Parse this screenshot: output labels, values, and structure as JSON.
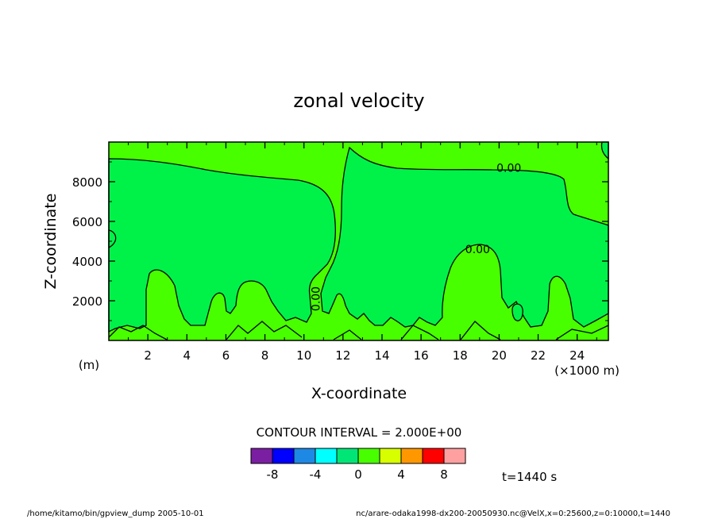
{
  "chart_data": {
    "type": "heatmap",
    "title": "zonal velocity",
    "xlabel": "X-coordinate",
    "ylabel": "Z-coordinate",
    "x_unit": "(×1000 m)",
    "y_unit": "(m)",
    "xlim": [
      0,
      25.6
    ],
    "ylim": [
      0,
      10000
    ],
    "x_ticks": [
      2,
      4,
      6,
      8,
      10,
      12,
      14,
      16,
      18,
      20,
      22,
      24
    ],
    "x_tick_labels": [
      "2",
      "4",
      "6",
      "8",
      "10",
      "12",
      "14",
      "16",
      "18",
      "20",
      "22",
      "24"
    ],
    "y_ticks": [
      2000,
      4000,
      6000,
      8000
    ],
    "y_tick_labels": [
      "2000",
      "4000",
      "6000",
      "8000"
    ],
    "contour_interval": "CONTOUR INTERVAL = 2.000E+00",
    "contour_labels": [
      {
        "text": "0.00",
        "x": 20.5,
        "y": 8500
      },
      {
        "text": "0.00",
        "x": 18.9,
        "y": 4400
      },
      {
        "text": "0.00",
        "x": 10.8,
        "y": 2100
      }
    ],
    "legend": {
      "colors": [
        "#7b1fa2",
        "#0000ff",
        "#1e88e5",
        "#00ffff",
        "#00e676",
        "#48ff00",
        "#d7ff00",
        "#ff9800",
        "#ff0000",
        "#ffa0a0"
      ],
      "tick_labels": [
        "-8",
        "-4",
        "0",
        "4",
        "8"
      ]
    },
    "time_label": "t=1440 s",
    "footer_left": "/home/kitamo/bin/gpview_dump   2005-10-01",
    "footer_right": "nc/arare-odaka1998-dx200-20050930.nc@VelX,x=0:25600,z=0:10000,t=1440"
  }
}
